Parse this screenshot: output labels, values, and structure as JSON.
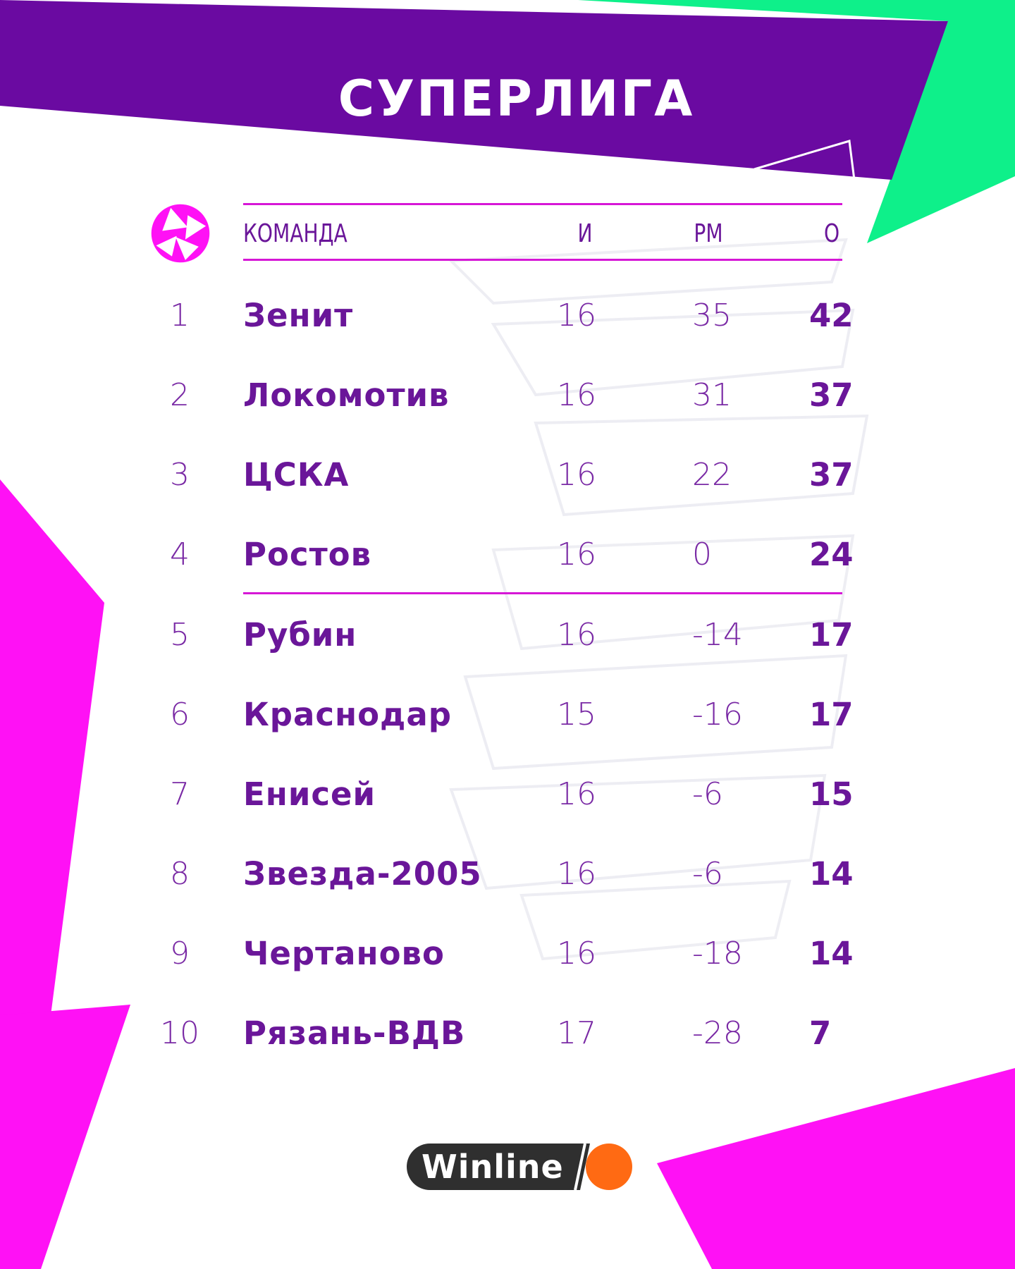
{
  "title": "СУПЕРЛИГА",
  "colors": {
    "purple": "#6a0aa1",
    "magenta": "#ff11f5",
    "green": "#0ef08a",
    "text": "#6a1699",
    "line": "#d617d6",
    "brand_orange": "#ff6a13"
  },
  "logo": "league-logo-icon",
  "table": {
    "headers": {
      "team": "КОМАНДА",
      "games": "И",
      "goal_diff": "РМ",
      "points": "О"
    },
    "rows": [
      {
        "pos": "1",
        "team": "Зенит",
        "games": "16",
        "diff": "35",
        "pts": "42"
      },
      {
        "pos": "2",
        "team": "Локомотив",
        "games": "16",
        "diff": "31",
        "pts": "37"
      },
      {
        "pos": "3",
        "team": "ЦСКА",
        "games": "16",
        "diff": "22",
        "pts": "37"
      },
      {
        "pos": "4",
        "team": "Ростов",
        "games": "16",
        "diff": "0",
        "pts": "24"
      },
      {
        "pos": "5",
        "team": "Рубин",
        "games": "16",
        "diff": "-14",
        "pts": "17"
      },
      {
        "pos": "6",
        "team": "Краснодар",
        "games": "15",
        "diff": "-16",
        "pts": "17"
      },
      {
        "pos": "7",
        "team": "Енисей",
        "games": "16",
        "diff": "-6",
        "pts": "15"
      },
      {
        "pos": "8",
        "team": "Звезда-2005",
        "games": "16",
        "diff": "-6",
        "pts": "14"
      },
      {
        "pos": "9",
        "team": "Чертаново",
        "games": "16",
        "diff": "-18",
        "pts": "14"
      },
      {
        "pos": "10",
        "team": "Рязань-ВДВ",
        "games": "17",
        "diff": "-28",
        "pts": "7"
      }
    ]
  },
  "sponsor": {
    "name": "Winline"
  }
}
